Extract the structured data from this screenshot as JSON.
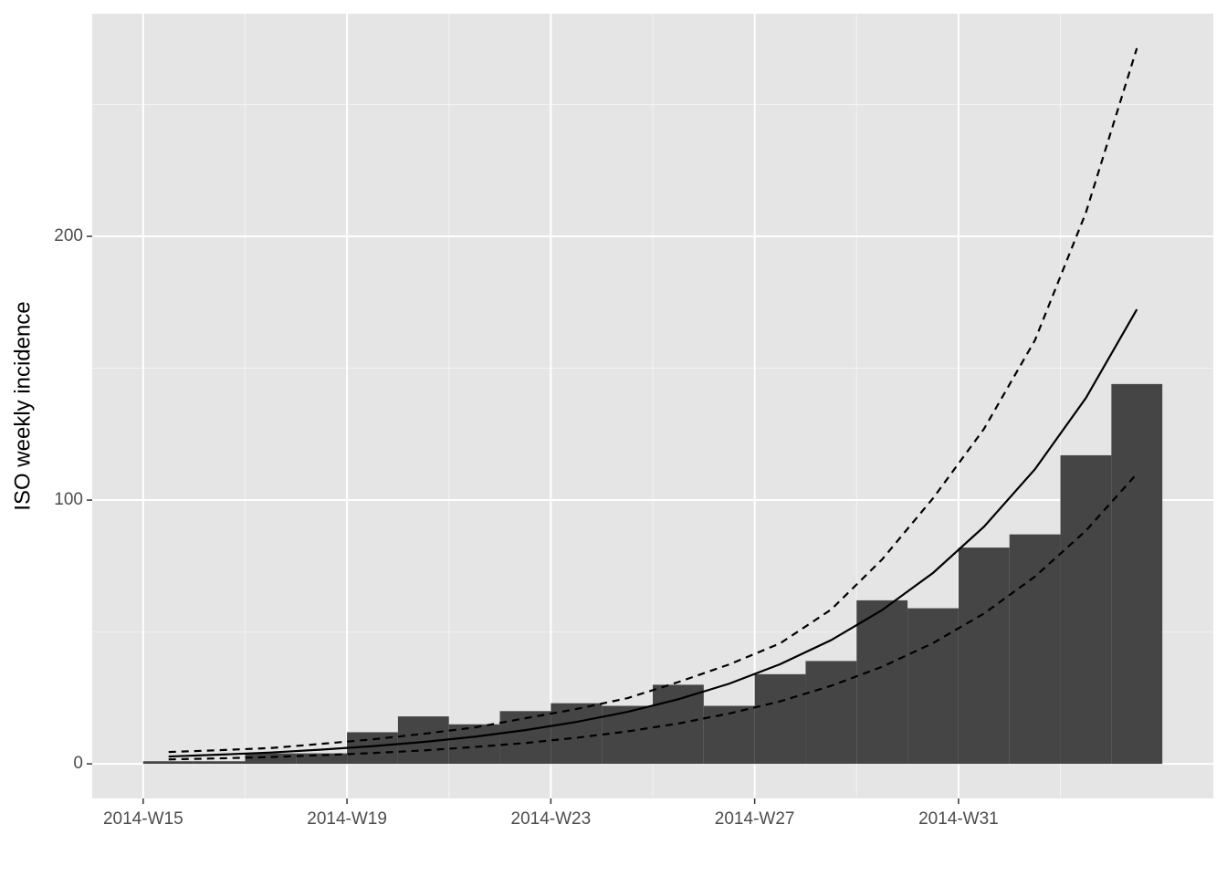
{
  "chart_data": {
    "type": "bar",
    "y_label": "ISO weekly incidence",
    "categories": [
      "2014-W15",
      null,
      null,
      null,
      "2014-W19",
      null,
      null,
      null,
      "2014-W23",
      null,
      null,
      null,
      "2014-W27",
      null,
      null,
      null,
      "2014-W31",
      null,
      null,
      null
    ],
    "values": [
      1,
      1,
      4,
      4,
      12,
      18,
      15,
      20,
      23,
      22,
      30,
      22,
      34,
      39,
      62,
      59,
      82,
      87,
      117,
      144
    ],
    "color": "#454545",
    "lines": [
      {
        "color": "#000000",
        "dash": "solid",
        "values": [
          2.8,
          3.5,
          4.3,
          5.4,
          6.7,
          8.3,
          10.3,
          12.8,
          15.9,
          19.7,
          24.5,
          30.4,
          37.8,
          46.9,
          58.3,
          72.4,
          89.9,
          111.7,
          138.7,
          172.3
        ]
      },
      {
        "color": "#000000",
        "dash": "dashed",
        "values": [
          4.5,
          5.2,
          6,
          7.6,
          9.3,
          11.4,
          13.8,
          17.3,
          20.8,
          24.9,
          31,
          37.7,
          45.7,
          58.5,
          77.5,
          100.7,
          127,
          160.6,
          209,
          271.3
        ]
      },
      {
        "color": "#000000",
        "dash": "dashed",
        "values": [
          1.7,
          2.1,
          2.6,
          3.3,
          4.1,
          5.1,
          6.4,
          7.9,
          9.9,
          12.3,
          15.3,
          19.1,
          23.7,
          29.6,
          36.8,
          45.8,
          57,
          71,
          88.4,
          110
        ]
      }
    ],
    "ylim": [
      -13.1,
      284.4
    ],
    "yticks": [
      0,
      100,
      200
    ],
    "grid": true
  }
}
